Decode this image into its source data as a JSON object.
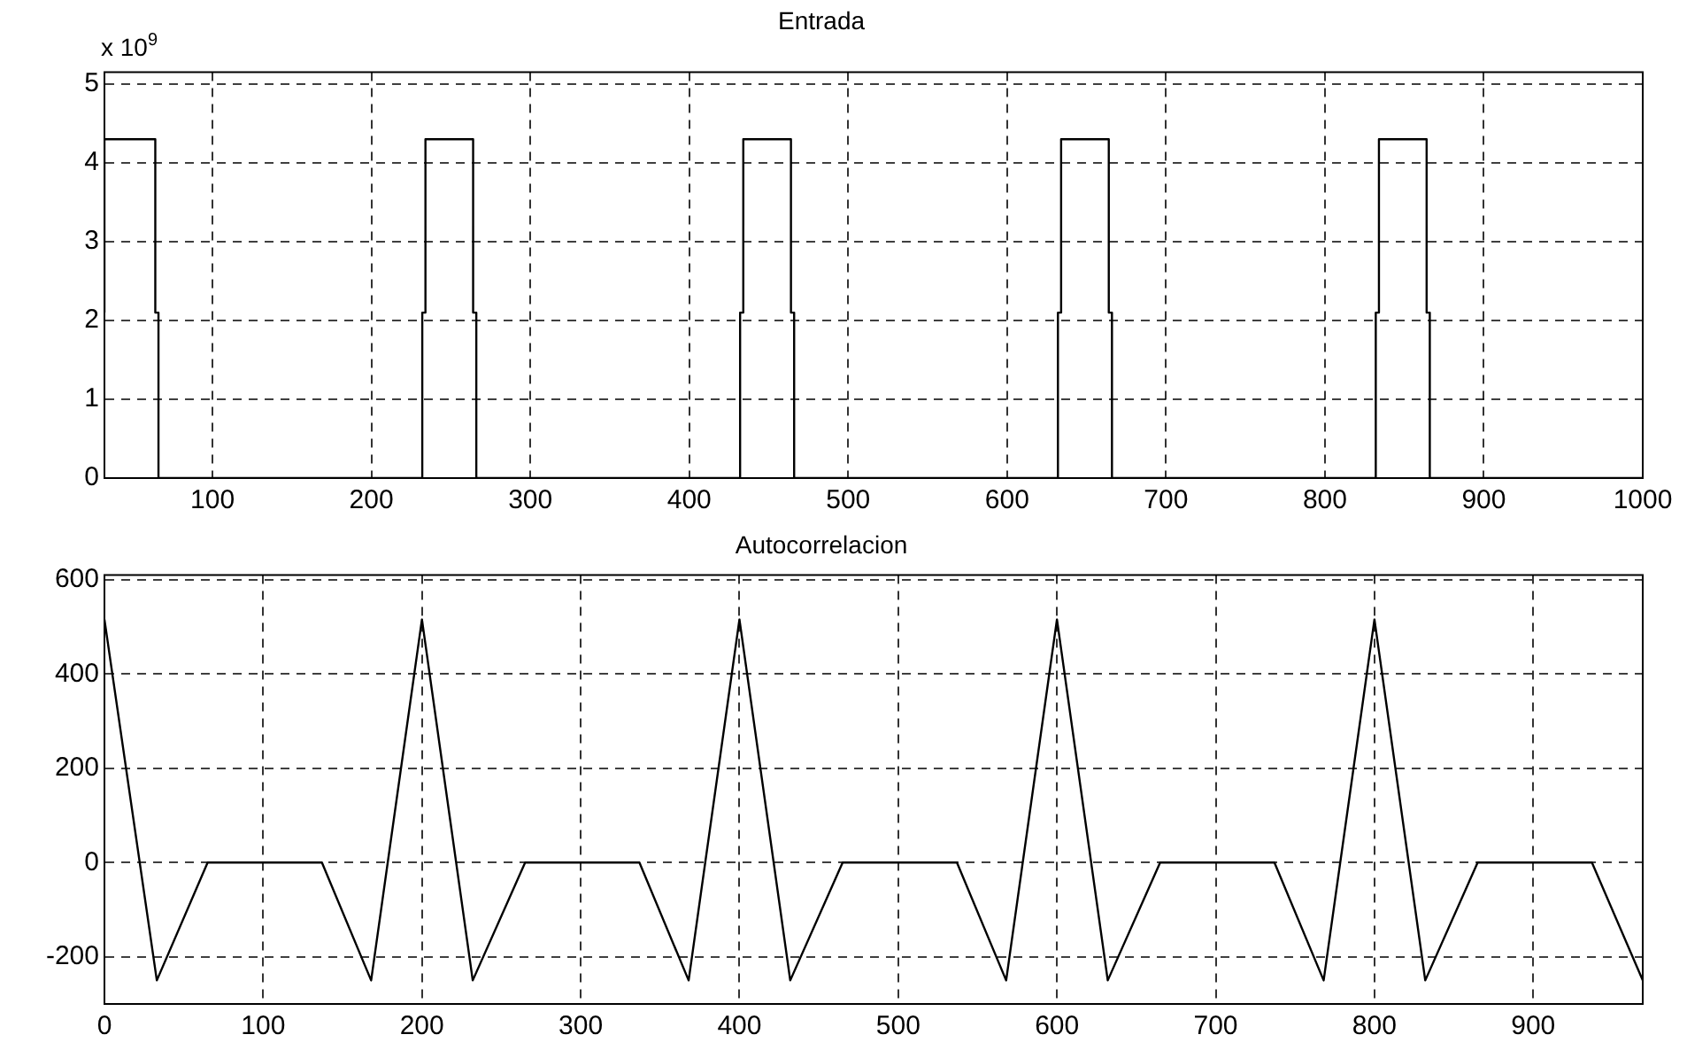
{
  "chart_data": [
    {
      "type": "line",
      "title": "Entrada",
      "annotations": [
        "x 10$^{9}$"
      ],
      "xlim": [
        32,
        1000
      ],
      "ylim": [
        0,
        5.15
      ],
      "xticks": [
        100,
        200,
        300,
        400,
        500,
        600,
        700,
        800,
        900,
        1000
      ],
      "yticks": [
        0,
        1,
        2,
        3,
        4,
        5
      ],
      "grid": true,
      "marker": "none",
      "line_style": "solid",
      "series": [
        {
          "color": "#000000",
          "x": [
            32,
            32,
            64,
            64,
            66,
            66,
            232,
            232,
            234,
            234,
            264,
            264,
            266,
            266,
            432,
            432,
            434,
            434,
            464,
            464,
            466,
            466,
            632,
            632,
            634,
            634,
            664,
            664,
            666,
            666,
            832,
            832,
            834,
            834,
            864,
            864,
            866,
            866,
            1000
          ],
          "values": [
            2.1,
            4.3,
            4.3,
            2.1,
            2.1,
            0,
            0,
            2.1,
            2.1,
            4.3,
            4.3,
            2.1,
            2.1,
            0,
            0,
            2.1,
            2.1,
            4.3,
            4.3,
            2.1,
            2.1,
            0,
            0,
            2.1,
            2.1,
            4.3,
            4.3,
            2.1,
            2.1,
            0,
            0,
            2.1,
            2.1,
            4.3,
            4.3,
            2.1,
            2.1,
            0,
            0
          ]
        }
      ]
    },
    {
      "type": "line",
      "title": "Autocorrelacion",
      "xlim": [
        0,
        969
      ],
      "ylim": [
        -300,
        610
      ],
      "xticks": [
        0,
        100,
        200,
        300,
        400,
        500,
        600,
        700,
        800,
        900
      ],
      "yticks": [
        -200,
        0,
        200,
        400,
        600
      ],
      "grid": true,
      "marker": "none",
      "line_style": "solid",
      "series": [
        {
          "color": "#000000",
          "x": [
            0,
            33,
            65,
            137,
            168,
            200,
            232,
            265,
            337,
            368,
            400,
            432,
            465,
            537,
            568,
            600,
            632,
            665,
            737,
            768,
            800,
            832,
            865,
            937,
            969
          ],
          "values": [
            516,
            -250,
            0,
            0,
            -250,
            516,
            -250,
            0,
            0,
            -250,
            516,
            -250,
            0,
            0,
            -250,
            516,
            -250,
            0,
            0,
            -250,
            516,
            -250,
            0,
            0,
            -250
          ]
        }
      ]
    }
  ]
}
